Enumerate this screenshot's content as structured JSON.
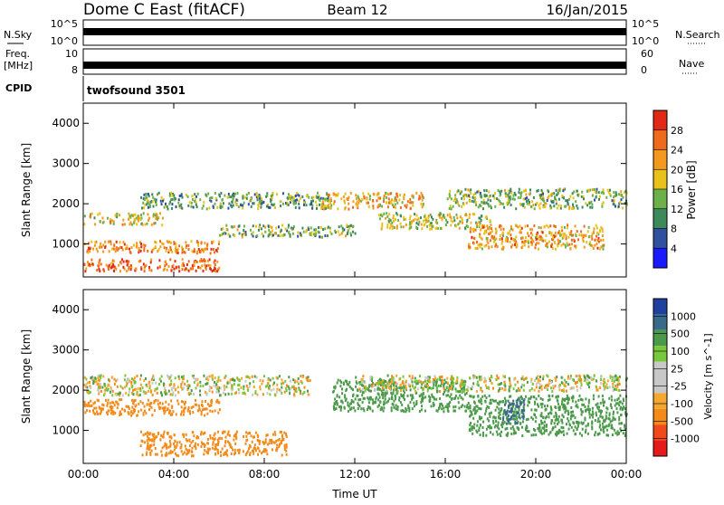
{
  "header": {
    "station": "Dome C East (fitACF)",
    "beam": "Beam 12",
    "date": "16/Jan/2015"
  },
  "status": {
    "nsky_label": "N.Sky",
    "nsky_ticks": [
      "10^5",
      "10^0"
    ],
    "nsearch_label": "N.Search",
    "nsearch_ticks": [
      "10^5",
      "10^0"
    ],
    "freq_label": "Freq.",
    "freq_unit": "[MHz]",
    "freq_ticks": [
      "10",
      "8"
    ],
    "nave_label": "Nave",
    "nave_ticks": [
      "60",
      "0"
    ],
    "cpid_label": "CPID",
    "cpid_value": "twofsound 3501"
  },
  "colors": {
    "power": [
      "#1a1aff",
      "#2f4f9f",
      "#3c8a5c",
      "#6cb04a",
      "#e8c21a",
      "#f39a1e",
      "#f06a1e",
      "#e02a16"
    ],
    "velocity": [
      "#e61a1a",
      "#f04a1a",
      "#f38a1a",
      "#f5a830",
      "#c8c8c8",
      "#c8c8c8",
      "#78c83c",
      "#4a9a4a",
      "#3a6a8a",
      "#2040a0"
    ]
  },
  "chart_data": [
    {
      "type": "heatmap",
      "title": "Power",
      "xlabel": "",
      "ylabel": "Slant Range [km]",
      "x_ticks": [
        "00:00",
        "04:00",
        "08:00",
        "12:00",
        "16:00",
        "20:00",
        "00:00"
      ],
      "x_range_hours": [
        0,
        24
      ],
      "y_ticks": [
        1000,
        2000,
        3000,
        4000
      ],
      "ylim": [
        180,
        4500
      ],
      "colorbar_label": "Power [dB]",
      "colorbar_ticks": [
        4,
        8,
        12,
        16,
        20,
        24,
        28
      ],
      "colorbar_range": [
        0,
        32
      ],
      "echo_bands": [
        {
          "x": [
            0,
            3.5
          ],
          "y": [
            1500,
            1800
          ],
          "value": 18
        },
        {
          "x": [
            0,
            6
          ],
          "y": [
            800,
            1100
          ],
          "value": 24
        },
        {
          "x": [
            0,
            6
          ],
          "y": [
            350,
            650
          ],
          "value": 26
        },
        {
          "x": [
            2.5,
            11
          ],
          "y": [
            1900,
            2300
          ],
          "value": 12
        },
        {
          "x": [
            6,
            12
          ],
          "y": [
            1200,
            1500
          ],
          "value": 14
        },
        {
          "x": [
            10.5,
            15
          ],
          "y": [
            1900,
            2300
          ],
          "value": 20
        },
        {
          "x": [
            13,
            18
          ],
          "y": [
            1400,
            1800
          ],
          "value": 16
        },
        {
          "x": [
            16,
            24
          ],
          "y": [
            1900,
            2400
          ],
          "value": 14
        },
        {
          "x": [
            17,
            23
          ],
          "y": [
            900,
            1500
          ],
          "value": 22
        }
      ]
    },
    {
      "type": "heatmap",
      "title": "Velocity",
      "xlabel": "Time UT",
      "ylabel": "Slant Range [km]",
      "x_ticks": [
        "00:00",
        "04:00",
        "08:00",
        "12:00",
        "16:00",
        "20:00",
        "00:00"
      ],
      "x_range_hours": [
        0,
        24
      ],
      "y_ticks": [
        1000,
        2000,
        3000,
        4000
      ],
      "ylim": [
        180,
        4500
      ],
      "colorbar_label": "Velocity [m s^-1]",
      "colorbar_ticks": [
        1000,
        500,
        100,
        25,
        -25,
        -100,
        -500,
        -1000
      ],
      "echo_bands": [
        {
          "x": [
            0,
            10
          ],
          "y": [
            1900,
            2400
          ],
          "value": 0
        },
        {
          "x": [
            0,
            6
          ],
          "y": [
            1400,
            1800
          ],
          "value": -300
        },
        {
          "x": [
            2.5,
            9
          ],
          "y": [
            400,
            1000
          ],
          "value": -300
        },
        {
          "x": [
            11,
            17
          ],
          "y": [
            1500,
            2300
          ],
          "value": 250
        },
        {
          "x": [
            17,
            24
          ],
          "y": [
            900,
            1900
          ],
          "value": 250
        },
        {
          "x": [
            18.5,
            19.5
          ],
          "y": [
            1200,
            1800
          ],
          "value": 800
        },
        {
          "x": [
            12,
            24
          ],
          "y": [
            2000,
            2400
          ],
          "value": 0
        }
      ]
    }
  ]
}
